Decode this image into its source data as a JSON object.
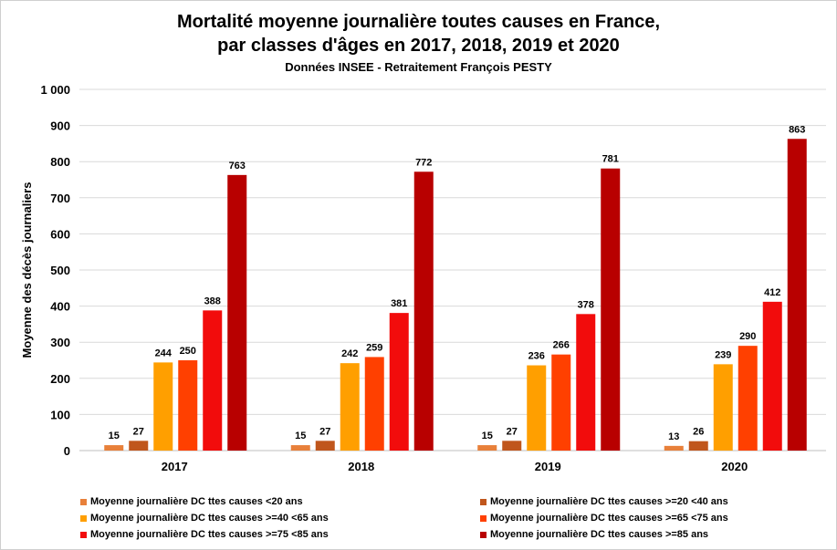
{
  "chart_data": {
    "type": "bar",
    "title": "Mortalité moyenne journalière toutes causes en France,",
    "title_line2": "par classes d'âges en 2017, 2018, 2019 et 2020",
    "subtitle": "Données INSEE - Retraitement François PESTY",
    "ylabel": "Moyenne des décès journaliers",
    "xlabel": "",
    "ylim": [
      0,
      1000
    ],
    "yticks": [
      0,
      100,
      200,
      300,
      400,
      500,
      600,
      700,
      800,
      900,
      1000
    ],
    "ytick_labels": [
      "0",
      "100",
      "200",
      "300",
      "400",
      "500",
      "600",
      "700",
      "800",
      "900",
      "1 000"
    ],
    "grid": true,
    "legend_position": "bottom",
    "categories": [
      "2017",
      "2018",
      "2019",
      "2020"
    ],
    "series": [
      {
        "name": "Moyenne journalière DC ttes causes <20 ans",
        "color": "#E8803A",
        "values": [
          15,
          15,
          15,
          13
        ]
      },
      {
        "name": "Moyenne journalière DC ttes causes >=20 <40 ans",
        "color": "#C0561C",
        "values": [
          27,
          27,
          27,
          26
        ]
      },
      {
        "name": "Moyenne journalière DC ttes causes >=40 <65 ans",
        "color": "#FF9F00",
        "values": [
          244,
          242,
          236,
          239
        ]
      },
      {
        "name": "Moyenne journalière DC ttes causes >=65 <75 ans",
        "color": "#FF4000",
        "values": [
          250,
          259,
          266,
          290
        ]
      },
      {
        "name": "Moyenne journalière DC ttes causes >=75 <85 ans",
        "color": "#F20C0C",
        "values": [
          388,
          381,
          378,
          412
        ]
      },
      {
        "name": "Moyenne journalière DC ttes causes >=85 ans",
        "color": "#B80000",
        "values": [
          763,
          772,
          781,
          863
        ]
      }
    ]
  }
}
